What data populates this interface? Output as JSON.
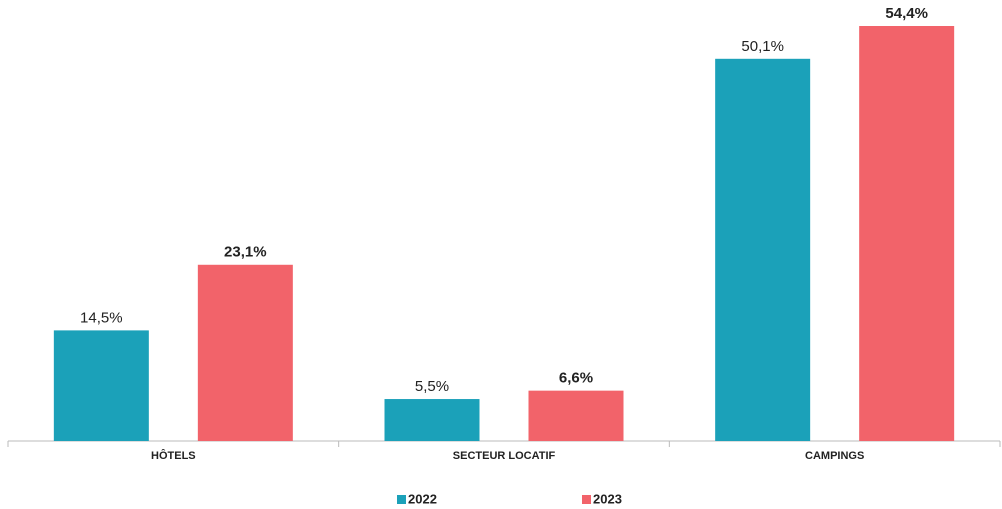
{
  "chart_data": {
    "type": "bar",
    "categories": [
      "HÔTELS",
      "SECTEUR LOCATIF",
      "CAMPINGS"
    ],
    "series": [
      {
        "name": "2022",
        "color": "#1ba1b9",
        "values": [
          14.5,
          5.5,
          50.1
        ],
        "value_labels": [
          "14,5%",
          "5,5%",
          "50,1%"
        ]
      },
      {
        "name": "2023",
        "color": "#f2636a",
        "values": [
          23.1,
          6.6,
          54.4
        ],
        "value_labels": [
          "23,1%",
          "6,6%",
          "54,4%"
        ]
      }
    ]
  }
}
